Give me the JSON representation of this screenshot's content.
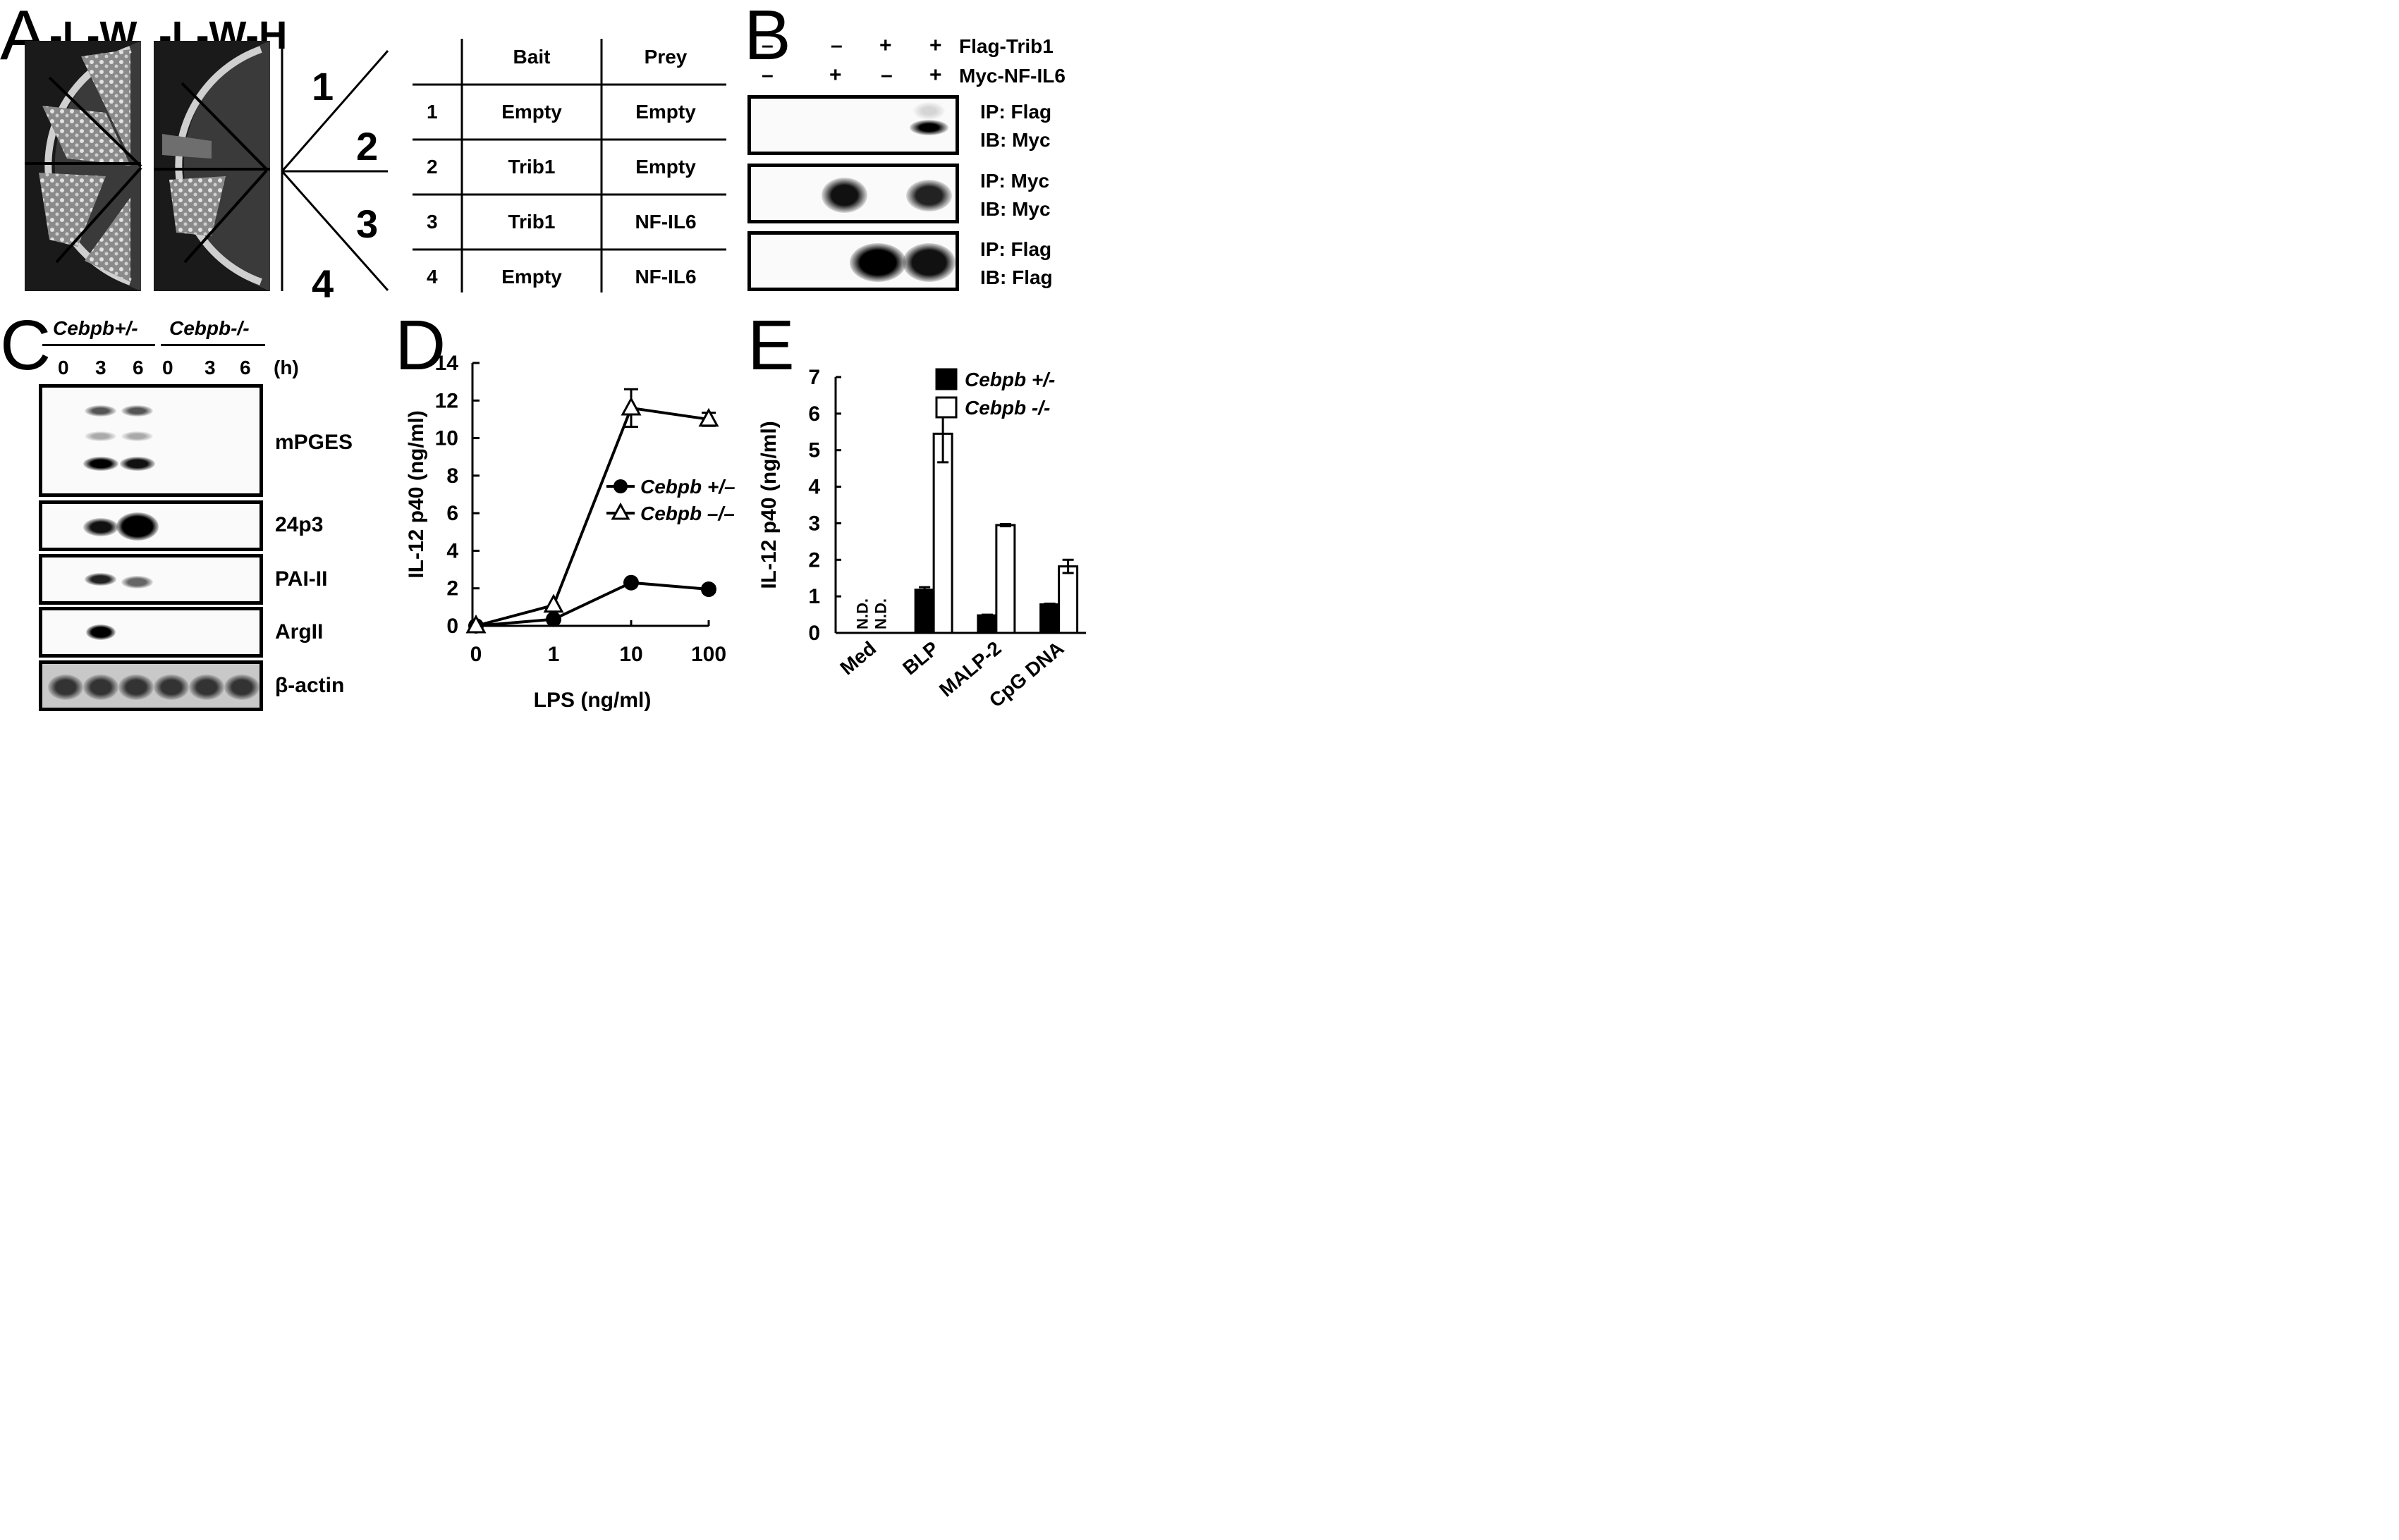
{
  "panels": {
    "A": {
      "letter": "A",
      "plate_labels": [
        "-L-W",
        "-L-W-H"
      ],
      "sector_numbers": [
        "1",
        "2",
        "3",
        "4"
      ],
      "table": {
        "headers": [
          "",
          "Bait",
          "Prey"
        ],
        "rows": [
          [
            "1",
            "Empty",
            "Empty"
          ],
          [
            "2",
            "Trib1",
            "Empty"
          ],
          [
            "3",
            "Trib1",
            "NF-IL6"
          ],
          [
            "4",
            "Empty",
            "NF-IL6"
          ]
        ]
      }
    },
    "B": {
      "letter": "B",
      "conditions": [
        {
          "label": "Flag-Trib1",
          "signs": [
            "–",
            "–",
            "+",
            "+"
          ]
        },
        {
          "label": "Myc-NF-IL6",
          "signs": [
            "–",
            "+",
            "–",
            "+"
          ]
        }
      ],
      "blots": [
        {
          "ip": "IP: Flag",
          "ib": "IB: Myc"
        },
        {
          "ip": "IP: Myc",
          "ib": "IB: Myc"
        },
        {
          "ip": "IP: Flag",
          "ib": "IB: Flag"
        }
      ]
    },
    "C": {
      "letter": "C",
      "groups": [
        "Cebpb+/-",
        "Cebpb-/-"
      ],
      "timepoints": [
        "0",
        "3",
        "6",
        "0",
        "3",
        "6"
      ],
      "time_unit": "(h)",
      "genes": [
        "mPGES",
        "24p3",
        "PAI-II",
        "ArgII",
        "β-actin"
      ]
    },
    "D": {
      "letter": "D"
    },
    "E": {
      "letter": "E"
    }
  },
  "chart_data": [
    {
      "type": "line",
      "xlabel": "LPS (ng/ml)",
      "ylabel": "IL-12 p40 (ng/ml)",
      "x": [
        "0",
        "1",
        "10",
        "100"
      ],
      "ylim": [
        0,
        14
      ],
      "yticks": [
        "0",
        "2",
        "4",
        "6",
        "8",
        "10",
        "12",
        "14"
      ],
      "legend_position": "center-right",
      "series": [
        {
          "name": "Cebpb +/–",
          "marker": "filled-circle",
          "values": [
            0,
            0.35,
            2.3,
            1.95
          ],
          "errors": [
            0,
            0,
            0,
            0.15
          ]
        },
        {
          "name": "Cebpb –/–",
          "marker": "open-triangle",
          "values": [
            0,
            1.1,
            11.6,
            11.0
          ],
          "errors": [
            0,
            0,
            1.0,
            0.35
          ]
        }
      ]
    },
    {
      "type": "bar",
      "ylabel": "IL-12 p40 (ng/ml)",
      "categories": [
        "Med",
        "BLP",
        "MALP-2",
        "CpG DNA"
      ],
      "ylim": [
        0,
        7
      ],
      "yticks": [
        "0",
        "1",
        "2",
        "3",
        "4",
        "5",
        "6",
        "7"
      ],
      "legend_position": "top-right",
      "nd_label": "N.D.",
      "series": [
        {
          "name": "Cebpb +/-",
          "fill": "#000000",
          "values": [
            null,
            1.18,
            0.48,
            0.78
          ],
          "errors": [
            0,
            0.07,
            0.02,
            0.02
          ]
        },
        {
          "name": "Cebpb -/-",
          "fill": "#ffffff",
          "values": [
            null,
            5.45,
            2.95,
            1.82
          ],
          "errors": [
            0,
            0.78,
            0.03,
            0.18
          ]
        }
      ]
    }
  ]
}
